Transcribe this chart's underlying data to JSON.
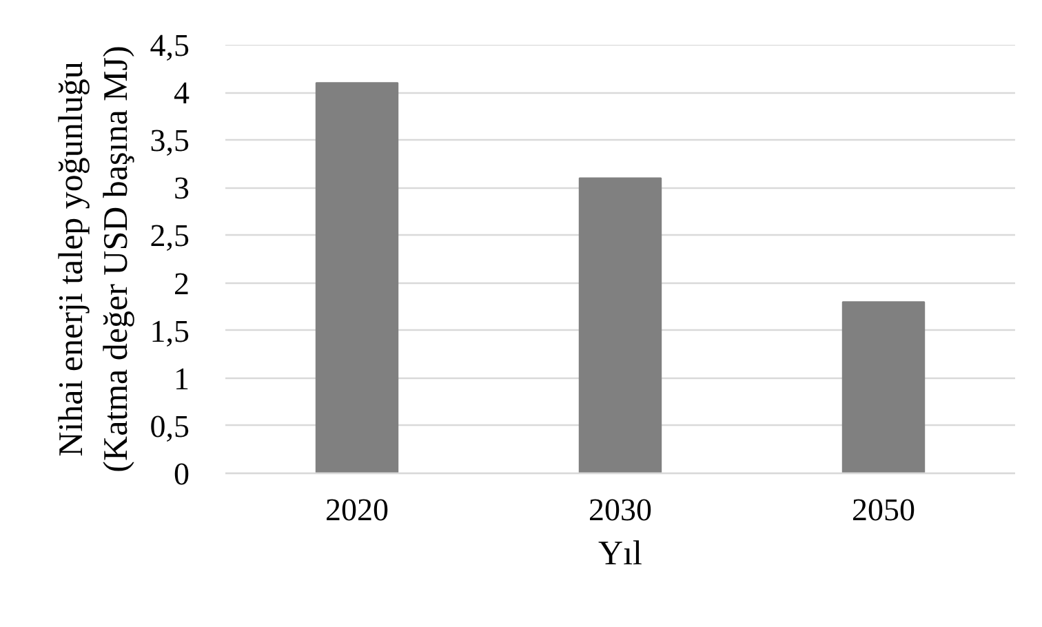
{
  "chart_data": {
    "type": "bar",
    "categories": [
      "2020",
      "2030",
      "2050"
    ],
    "values": [
      4.1,
      3.1,
      1.8
    ],
    "color": "#808080",
    "xlabel": "Yıl",
    "ylabel": "Nihai enerji talep yoğunluğu (Katma değer USD başına MJ)",
    "ylim": [
      0,
      4.5
    ],
    "yticks": [
      0,
      {
        "value": 0.5,
        "label": "0,5"
      },
      1,
      {
        "value": 1.5,
        "label": "1,5"
      },
      2,
      {
        "value": 2.5,
        "label": "2,5"
      },
      3,
      {
        "value": 3.5,
        "label": "3,5"
      },
      4,
      {
        "value": 4.5,
        "label": "4,5"
      }
    ],
    "grid": "y"
  }
}
